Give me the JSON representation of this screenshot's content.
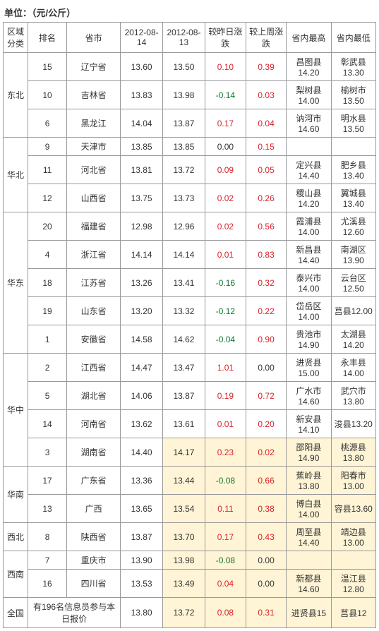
{
  "unit": "单位：（元/公斤）",
  "headers": {
    "region": "区域分类",
    "rank": "排名",
    "province": "省市",
    "date1": "2012-08-14",
    "date2": "2012-08-13",
    "dayChange": "较昨日涨跌",
    "weekChange": "较上周涨跌",
    "provHigh": "省内最高",
    "provLow": "省内最低"
  },
  "regions": [
    {
      "name": "东北",
      "rows": [
        {
          "rank": "15",
          "province": "辽宁省",
          "d1": "13.60",
          "d2": "13.50",
          "day": "0.10",
          "dayCls": "pos",
          "week": "0.39",
          "weekCls": "pos",
          "high": "昌图县14.20",
          "low": "彰武县13.30",
          "hl": false
        },
        {
          "rank": "10",
          "province": "吉林省",
          "d1": "13.83",
          "d2": "13.98",
          "day": "-0.14",
          "dayCls": "neg",
          "week": "0.03",
          "weekCls": "pos",
          "high": "梨树县14.00",
          "low": "榆树市13.50",
          "hl": false
        },
        {
          "rank": "6",
          "province": "黑龙江",
          "d1": "14.04",
          "d2": "13.87",
          "day": "0.17",
          "dayCls": "pos",
          "week": "0.04",
          "weekCls": "pos",
          "high": "讷河市14.60",
          "low": "明水县13.50",
          "hl": false
        }
      ]
    },
    {
      "name": "华北",
      "rows": [
        {
          "rank": "9",
          "province": "天津市",
          "d1": "13.85",
          "d2": "13.85",
          "day": "0.00",
          "dayCls": "zero",
          "week": "0.15",
          "weekCls": "pos",
          "high": "",
          "low": "",
          "hl": false
        },
        {
          "rank": "11",
          "province": "河北省",
          "d1": "13.81",
          "d2": "13.72",
          "day": "0.09",
          "dayCls": "pos",
          "week": "0.05",
          "weekCls": "pos",
          "high": "定兴县14.40",
          "low": "肥乡县13.40",
          "hl": false
        },
        {
          "rank": "12",
          "province": "山西省",
          "d1": "13.75",
          "d2": "13.73",
          "day": "0.02",
          "dayCls": "pos",
          "week": "0.26",
          "weekCls": "pos",
          "high": "稷山县14.20",
          "low": "翼城县13.40",
          "hl": false
        }
      ]
    },
    {
      "name": "华东",
      "rows": [
        {
          "rank": "20",
          "province": "福建省",
          "d1": "12.98",
          "d2": "12.96",
          "day": "0.02",
          "dayCls": "pos",
          "week": "0.56",
          "weekCls": "pos",
          "high": "霞浦县14.00",
          "low": "尤溪县12.60",
          "hl": false
        },
        {
          "rank": "4",
          "province": "浙江省",
          "d1": "14.14",
          "d2": "14.14",
          "day": "0.01",
          "dayCls": "pos",
          "week": "0.83",
          "weekCls": "pos",
          "high": "新昌县14.40",
          "low": "南湖区13.90",
          "hl": false
        },
        {
          "rank": "18",
          "province": "江苏省",
          "d1": "13.26",
          "d2": "13.41",
          "day": "-0.16",
          "dayCls": "neg",
          "week": "0.32",
          "weekCls": "pos",
          "high": "泰兴市14.00",
          "low": "云台区12.50",
          "hl": false
        },
        {
          "rank": "19",
          "province": "山东省",
          "d1": "13.20",
          "d2": "13.32",
          "day": "-0.12",
          "dayCls": "neg",
          "week": "0.22",
          "weekCls": "pos",
          "high": "岱岳区14.00",
          "low": "莒县12.00",
          "hl": false
        },
        {
          "rank": "1",
          "province": "安徽省",
          "d1": "14.58",
          "d2": "14.62",
          "day": "-0.04",
          "dayCls": "neg",
          "week": "0.90",
          "weekCls": "pos",
          "high": "贵池市14.90",
          "low": "太湖县14.20",
          "hl": false
        }
      ]
    },
    {
      "name": "华中",
      "rows": [
        {
          "rank": "2",
          "province": "江西省",
          "d1": "14.47",
          "d2": "13.47",
          "day": "1.01",
          "dayCls": "pos",
          "week": "0.00",
          "weekCls": "zero",
          "high": "进贤县15.00",
          "low": "永丰县14.00",
          "hl": false
        },
        {
          "rank": "5",
          "province": "湖北省",
          "d1": "14.06",
          "d2": "13.87",
          "day": "0.19",
          "dayCls": "pos",
          "week": "0.72",
          "weekCls": "pos",
          "high": "广水市14.60",
          "low": "武穴市13.80",
          "hl": false
        },
        {
          "rank": "14",
          "province": "河南省",
          "d1": "13.62",
          "d2": "13.61",
          "day": "0.01",
          "dayCls": "pos",
          "week": "0.20",
          "weekCls": "pos",
          "high": "新安县14.10",
          "low": "浚县13.20",
          "hl": false
        },
        {
          "rank": "3",
          "province": "湖南省",
          "d1": "14.40",
          "d2": "14.17",
          "day": "0.23",
          "dayCls": "pos",
          "week": "0.02",
          "weekCls": "pos",
          "high": "邵阳县14.90",
          "low": "桃源县13.80",
          "hl": true
        }
      ]
    },
    {
      "name": "华南",
      "rows": [
        {
          "rank": "17",
          "province": "广东省",
          "d1": "13.36",
          "d2": "13.44",
          "day": "-0.08",
          "dayCls": "neg",
          "week": "0.66",
          "weekCls": "pos",
          "high": "蕉岭县13.80",
          "low": "阳春市13.00",
          "hl": true
        },
        {
          "rank": "13",
          "province": "广西",
          "d1": "13.65",
          "d2": "13.54",
          "day": "0.11",
          "dayCls": "pos",
          "week": "0.38",
          "weekCls": "pos",
          "high": "博白县14.00",
          "low": "容县13.60",
          "hl": true
        }
      ]
    },
    {
      "name": "西北",
      "rows": [
        {
          "rank": "8",
          "province": "陕西省",
          "d1": "13.87",
          "d2": "13.70",
          "day": "0.17",
          "dayCls": "pos",
          "week": "0.43",
          "weekCls": "pos",
          "high": "周至县14.40",
          "low": "靖边县13.00",
          "hl": true
        }
      ]
    },
    {
      "name": "西南",
      "rows": [
        {
          "rank": "7",
          "province": "重庆市",
          "d1": "13.90",
          "d2": "13.98",
          "day": "-0.08",
          "dayCls": "neg",
          "week": "0.00",
          "weekCls": "zero",
          "high": "",
          "low": "",
          "hl": true
        },
        {
          "rank": "16",
          "province": "四川省",
          "d1": "13.53",
          "d2": "13.49",
          "day": "0.04",
          "dayCls": "pos",
          "week": "0.00",
          "weekCls": "zero",
          "high": "新都县14.60",
          "low": "温江县12.80",
          "hl": true
        }
      ]
    }
  ],
  "national": {
    "name": "全国",
    "note": "有196名信息员参与本日报价",
    "d1": "13.80",
    "d2": "13.72",
    "day": "0.08",
    "dayCls": "pos",
    "week": "0.31",
    "weekCls": "pos",
    "high": "进贤县15",
    "low": "莒县12"
  }
}
